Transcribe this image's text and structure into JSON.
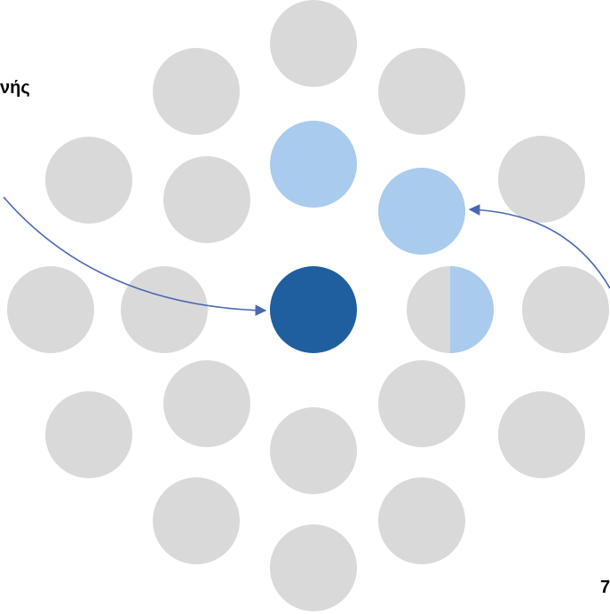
{
  "labels": {
    "left_text": "νής",
    "bottom_right_text": "7"
  },
  "colors": {
    "background": "#ffffff",
    "neutral_circle": "#d9d9d9",
    "light_blue_circle": "#a9cbee",
    "dark_blue_circle": "#1f5f9f",
    "arrow": "#4a67b2"
  },
  "circles": [
    {
      "name": "circle-top",
      "fill": "neutral"
    },
    {
      "name": "circle-upper-left",
      "fill": "neutral"
    },
    {
      "name": "circle-upper-right",
      "fill": "neutral"
    },
    {
      "name": "circle-center-upper",
      "fill": "light_blue"
    },
    {
      "name": "circle-far-left-upper",
      "fill": "neutral"
    },
    {
      "name": "circle-inner-left-upper",
      "fill": "neutral"
    },
    {
      "name": "circle-inner-right-upper",
      "fill": "light_blue"
    },
    {
      "name": "circle-far-right-upper",
      "fill": "neutral"
    },
    {
      "name": "circle-far-left-middle",
      "fill": "neutral"
    },
    {
      "name": "circle-inner-left-middle",
      "fill": "neutral"
    },
    {
      "name": "circle-center",
      "fill": "dark_blue"
    },
    {
      "name": "circle-inner-right-middle-half",
      "fill": "half_light_blue"
    },
    {
      "name": "circle-far-right-middle",
      "fill": "neutral"
    },
    {
      "name": "circle-inner-left-lower",
      "fill": "neutral"
    },
    {
      "name": "circle-inner-right-lower",
      "fill": "neutral"
    },
    {
      "name": "circle-far-left-lower",
      "fill": "neutral"
    },
    {
      "name": "circle-center-lower",
      "fill": "neutral"
    },
    {
      "name": "circle-far-right-lower",
      "fill": "neutral"
    },
    {
      "name": "circle-lower-left",
      "fill": "neutral"
    },
    {
      "name": "circle-lower-right",
      "fill": "neutral"
    },
    {
      "name": "circle-bottom",
      "fill": "neutral"
    }
  ]
}
